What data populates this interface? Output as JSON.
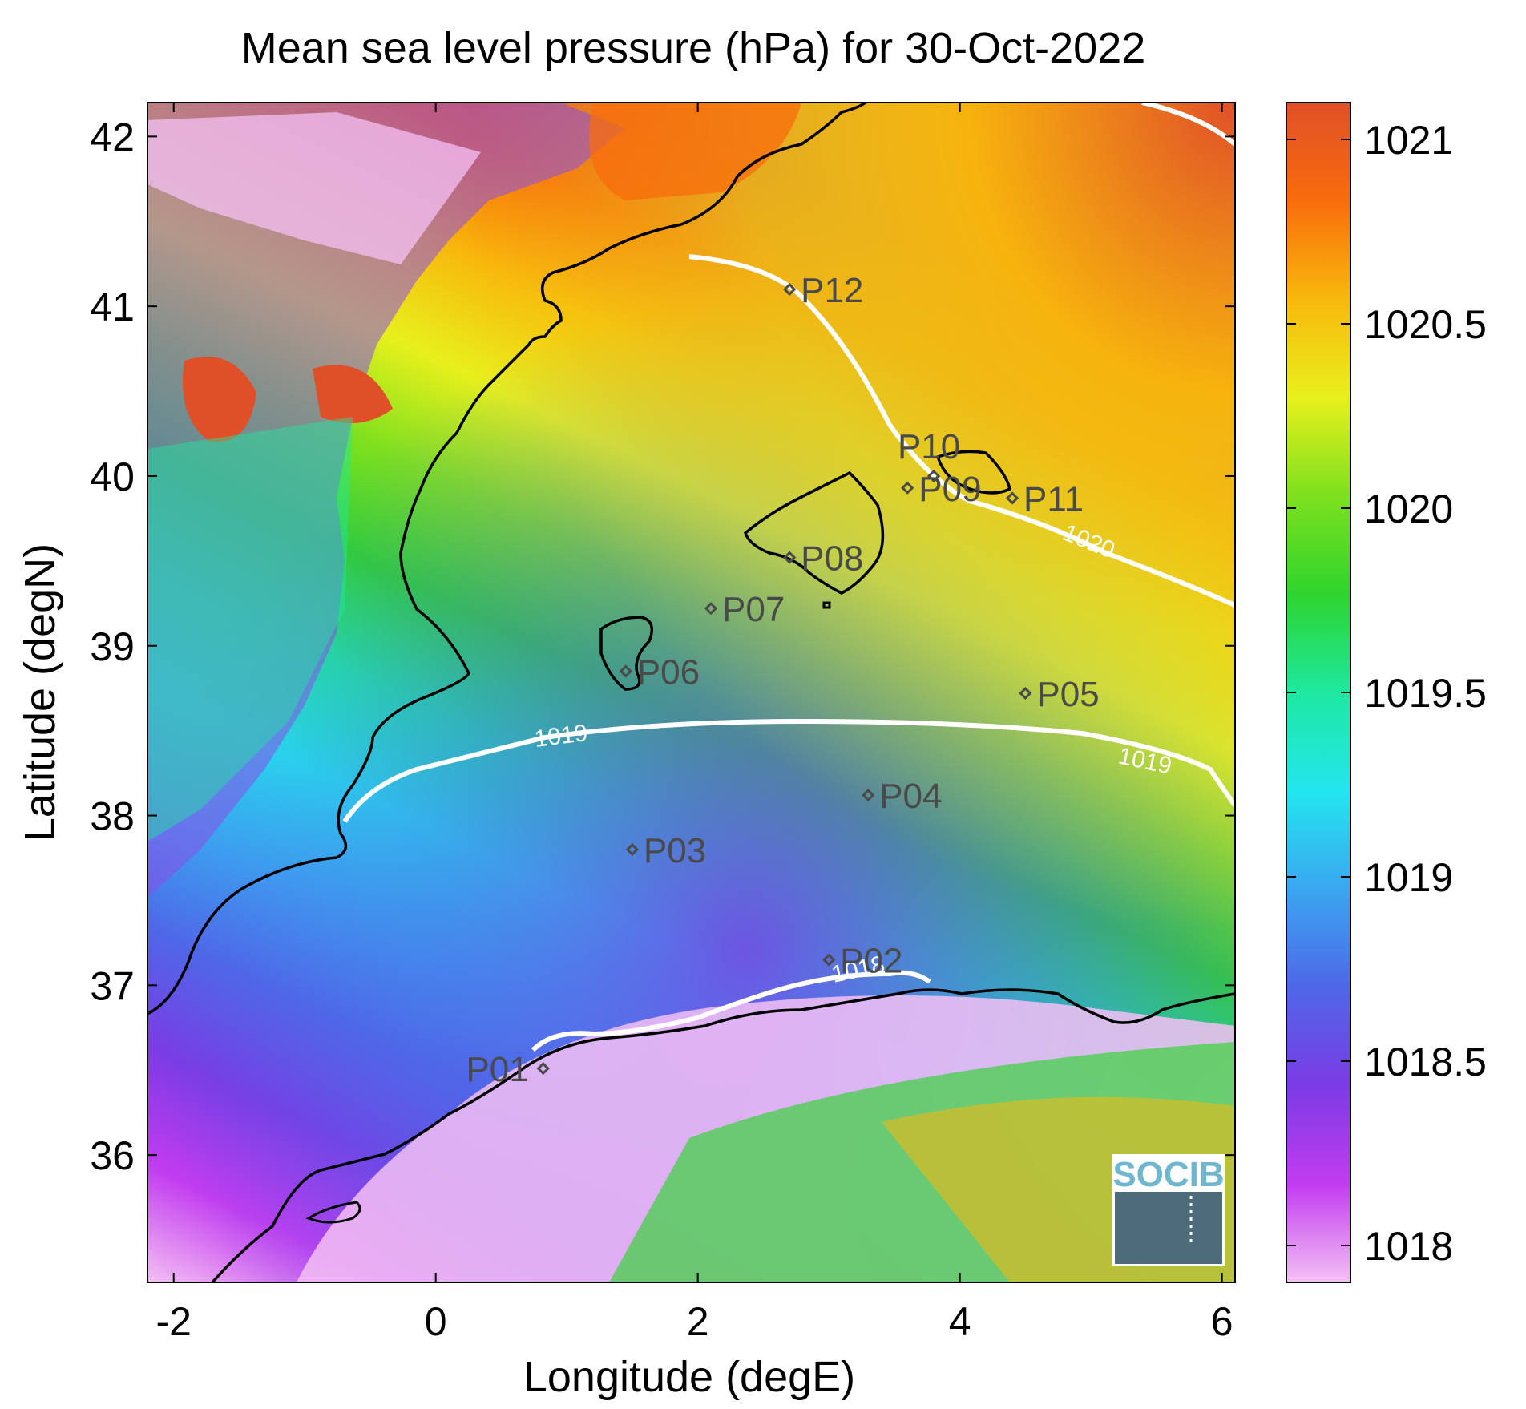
{
  "title": "Mean sea level pressure (hPa) for 30-Oct-2022",
  "x_axis": {
    "label": "Longitude (degE)",
    "range": [
      -2.2,
      6.1
    ],
    "ticks": [
      {
        "value": -2,
        "label": "-2"
      },
      {
        "value": 0,
        "label": "0"
      },
      {
        "value": 2,
        "label": "2"
      },
      {
        "value": 4,
        "label": "4"
      },
      {
        "value": 6,
        "label": "6"
      }
    ]
  },
  "y_axis": {
    "label": "Latitude (degN)",
    "range": [
      35.25,
      42.2
    ],
    "ticks": [
      {
        "value": 36,
        "label": "36"
      },
      {
        "value": 37,
        "label": "37"
      },
      {
        "value": 38,
        "label": "38"
      },
      {
        "value": 39,
        "label": "39"
      },
      {
        "value": 40,
        "label": "40"
      },
      {
        "value": 41,
        "label": "41"
      },
      {
        "value": 42,
        "label": "42"
      }
    ]
  },
  "colorbar": {
    "range": [
      1017.9,
      1021.1
    ],
    "ticks": [
      {
        "value": 1018,
        "label": "1018"
      },
      {
        "value": 1018.5,
        "label": "1018.5"
      },
      {
        "value": 1019,
        "label": "1019"
      },
      {
        "value": 1019.5,
        "label": "1019.5"
      },
      {
        "value": 1020,
        "label": "1020"
      },
      {
        "value": 1020.5,
        "label": "1020.5"
      },
      {
        "value": 1021,
        "label": "1021"
      }
    ],
    "colors": [
      "#f4c0f4",
      "#c23cf0",
      "#7b3be4",
      "#4f67e8",
      "#3aa6f0",
      "#22e6ee",
      "#1ee8a0",
      "#2ed42e",
      "#7ee01e",
      "#e8f01c",
      "#f8b80c",
      "#f86c0c",
      "#e05028"
    ]
  },
  "chart_data": {
    "type": "map",
    "variable": "Mean sea level pressure",
    "units": "hPa",
    "date": "30-Oct-2022",
    "stations": [
      {
        "name": "P01",
        "lon": 0.82,
        "lat": 36.51
      },
      {
        "name": "P02",
        "lon": 3.0,
        "lat": 37.15
      },
      {
        "name": "P03",
        "lon": 1.5,
        "lat": 37.8
      },
      {
        "name": "P04",
        "lon": 3.3,
        "lat": 38.12
      },
      {
        "name": "P05",
        "lon": 4.5,
        "lat": 38.72
      },
      {
        "name": "P06",
        "lon": 1.45,
        "lat": 38.85
      },
      {
        "name": "P07",
        "lon": 2.1,
        "lat": 39.22
      },
      {
        "name": "P08",
        "lon": 2.7,
        "lat": 39.52
      },
      {
        "name": "P09",
        "lon": 3.6,
        "lat": 39.93
      },
      {
        "name": "P10",
        "lon": 3.8,
        "lat": 40.0
      },
      {
        "name": "P11",
        "lon": 4.4,
        "lat": 39.87
      },
      {
        "name": "P12",
        "lon": 2.7,
        "lat": 41.1
      }
    ],
    "contours": [
      {
        "level": 1018,
        "label": "1018"
      },
      {
        "level": 1019,
        "label": "1019"
      },
      {
        "level": 1020,
        "label": "1020"
      }
    ]
  },
  "logo": {
    "text": "SOCIB"
  }
}
